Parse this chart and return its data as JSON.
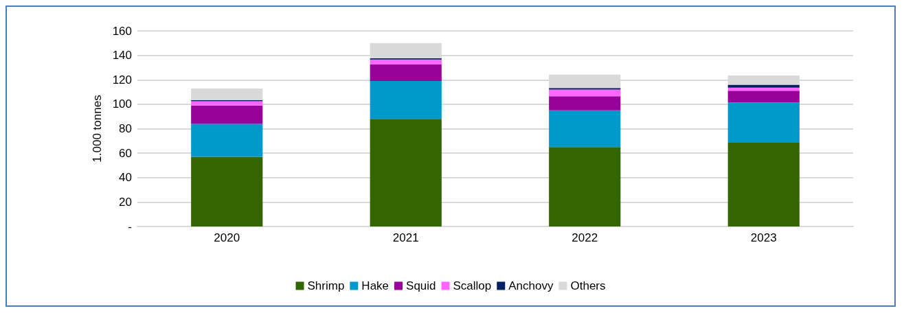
{
  "chart_data": {
    "type": "bar",
    "stacked": true,
    "ylabel": "1.000 tonnes",
    "categories": [
      "2020",
      "2021",
      "2022",
      "2023"
    ],
    "series": [
      {
        "name": "Shrimp",
        "color": "#336600",
        "values": [
          57,
          88,
          65,
          68.5
        ]
      },
      {
        "name": "Hake",
        "color": "#0099cc",
        "values": [
          27,
          31,
          30,
          33
        ]
      },
      {
        "name": "Squid",
        "color": "#990099",
        "values": [
          15,
          13.5,
          11.5,
          9.5
        ]
      },
      {
        "name": "Scallop",
        "color": "#ff66ff",
        "values": [
          3.5,
          4,
          5.5,
          2.5
        ]
      },
      {
        "name": "Anchovy",
        "color": "#002060",
        "values": [
          0.8,
          1,
          1.2,
          2.5
        ]
      },
      {
        "name": "Others",
        "color": "#d9d9d9",
        "values": [
          9.5,
          12.5,
          11,
          7.5
        ]
      }
    ],
    "ylim": [
      0,
      160
    ],
    "yticks": [
      {
        "value": 0,
        "label": "-"
      },
      20,
      40,
      60,
      80,
      100,
      120,
      140,
      160
    ],
    "grid": "y",
    "legend": "bottom"
  }
}
